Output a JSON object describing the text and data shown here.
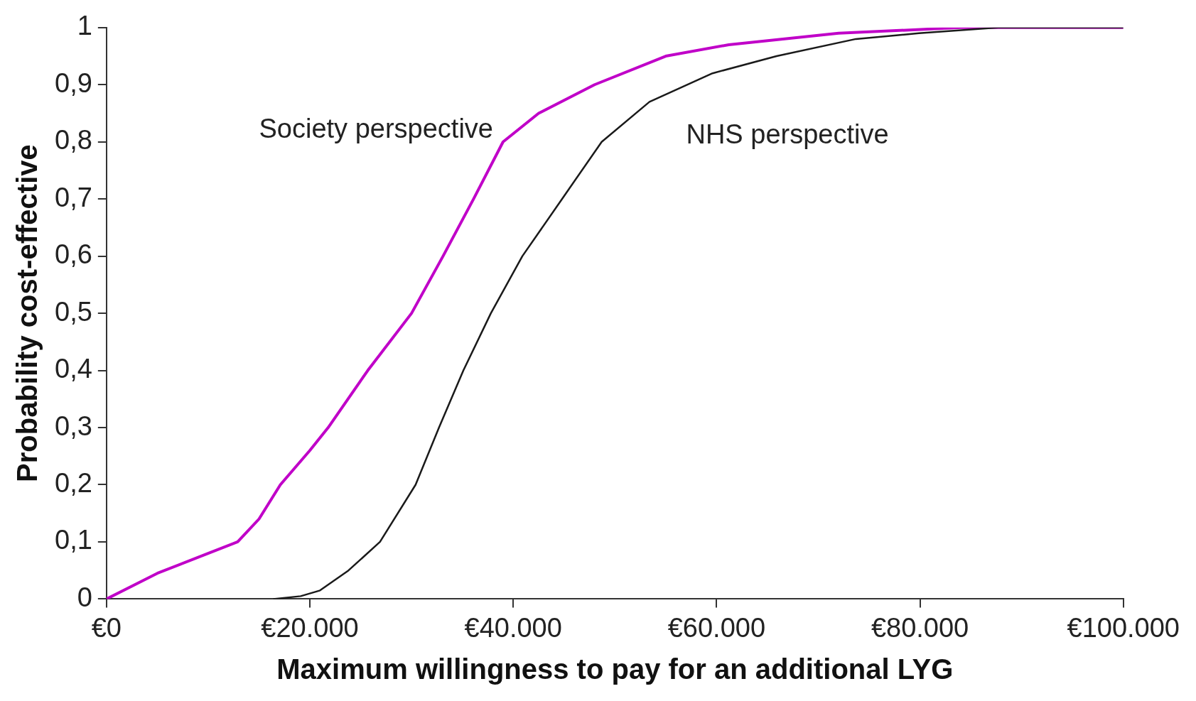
{
  "chart_data": {
    "type": "line",
    "xlabel": "Maximum willingness to pay for an additional LYG",
    "ylabel": "Probability cost-effective",
    "xlim": [
      0,
      100000
    ],
    "ylim": [
      0,
      1
    ],
    "xticks": [
      {
        "value": 0,
        "label": "€0"
      },
      {
        "value": 20000,
        "label": "€20.000"
      },
      {
        "value": 40000,
        "label": "€40.000"
      },
      {
        "value": 60000,
        "label": "€60.000"
      },
      {
        "value": 80000,
        "label": "€80.000"
      },
      {
        "value": 100000,
        "label": "€100.000"
      }
    ],
    "yticks": [
      0,
      {
        "value": 0.1,
        "label": "0,1"
      },
      {
        "value": 0.2,
        "label": "0,2"
      },
      {
        "value": 0.3,
        "label": "0,3"
      },
      {
        "value": 0.4,
        "label": "0,4"
      },
      {
        "value": 0.5,
        "label": "0,5"
      },
      {
        "value": 0.6,
        "label": "0,6"
      },
      {
        "value": 0.7,
        "label": "0,7"
      },
      {
        "value": 0.8,
        "label": "0,8"
      },
      {
        "value": 0.9,
        "label": "0,9"
      },
      1
    ],
    "grid": false,
    "legend": false,
    "marker": "none",
    "line_style": "solid",
    "series": [
      {
        "name": "Society perspective",
        "color": "#c000c8",
        "x": [
          0,
          5000,
          10000,
          12900,
          15000,
          17100,
          20000,
          21800,
          25700,
          30000,
          33100,
          36100,
          39000,
          42500,
          48000,
          55000,
          61200,
          72000,
          84000,
          100000
        ],
        "values": [
          0,
          0.045,
          0.08,
          0.1,
          0.14,
          0.2,
          0.26,
          0.3,
          0.4,
          0.5,
          0.6,
          0.7,
          0.8,
          0.85,
          0.9,
          0.95,
          0.97,
          0.99,
          1,
          1
        ]
      },
      {
        "name": "NHS perspective",
        "color": "#1a1a1a",
        "x": [
          16400,
          19100,
          21000,
          23800,
          26900,
          30400,
          32700,
          35100,
          37800,
          40900,
          44800,
          48700,
          53400,
          59600,
          65900,
          73700,
          79900,
          87700,
          100000
        ],
        "values": [
          0,
          0.005,
          0.015,
          0.05,
          0.1,
          0.2,
          0.3,
          0.4,
          0.5,
          0.6,
          0.7,
          0.8,
          0.87,
          0.92,
          0.95,
          0.98,
          0.99,
          1,
          1
        ]
      }
    ]
  }
}
